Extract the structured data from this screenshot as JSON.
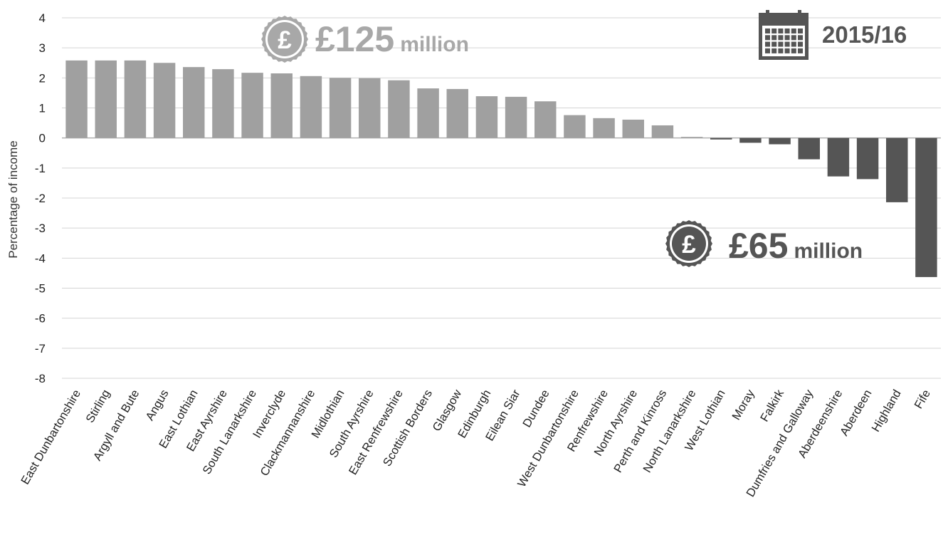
{
  "chart_data": {
    "type": "bar",
    "ylabel": "Percentage of income",
    "ylim": [
      -8,
      4
    ],
    "yticks": [
      4,
      3,
      2,
      1,
      0,
      -1,
      -2,
      -3,
      -4,
      -5,
      -6,
      -7,
      -8
    ],
    "grid": true,
    "categories": [
      "East Dunbartonshire",
      "Stirling",
      "Argyll and Bute",
      "Angus",
      "East Lothian",
      "East Ayrshire",
      "South Lanarkshire",
      "Inverclyde",
      "Clackmannanshire",
      "Midlothian",
      "South Ayrshire",
      "East Renfrewshire",
      "Scottish Borders",
      "Glasgow",
      "Edinburgh",
      "Eilean Siar",
      "Dundee",
      "West Dunbartonshire",
      "Renfrewshire",
      "North Ayrshire",
      "Perth and Kinross",
      "North Lanarkshire",
      "West Lothian",
      "Moray",
      "Falkirk",
      "Dumfries and Galloway",
      "Aberdeenshire",
      "Aberdeen",
      "Highland",
      "Fife"
    ],
    "values": [
      2.58,
      2.58,
      2.58,
      2.5,
      2.36,
      2.29,
      2.17,
      2.15,
      2.06,
      2.0,
      1.99,
      1.92,
      1.65,
      1.63,
      1.39,
      1.37,
      1.22,
      0.76,
      0.66,
      0.61,
      0.42,
      0.03,
      -0.05,
      -0.16,
      -0.21,
      -0.71,
      -1.28,
      -1.37,
      -2.14,
      -4.63
    ],
    "colors": {
      "positive": "#a0a0a0",
      "negative": "#555555"
    }
  },
  "annotations": {
    "surplus": {
      "amount": "£125",
      "unit": "million",
      "icon": "pound-coin-icon",
      "color": "#a8a8a8"
    },
    "deficit": {
      "amount": "£65",
      "unit": "million",
      "icon": "pound-coin-icon",
      "color": "#555555"
    },
    "year": {
      "label": "2015/16",
      "icon": "calendar-icon",
      "color": "#555555"
    }
  }
}
